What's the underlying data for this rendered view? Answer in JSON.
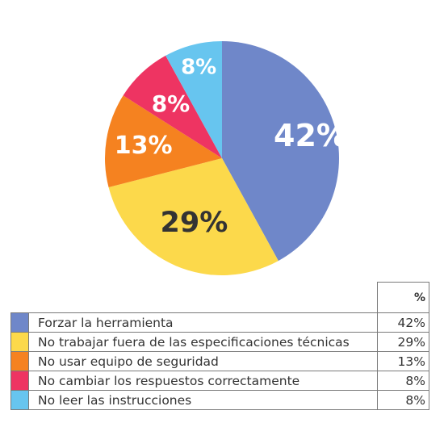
{
  "chart_data": {
    "type": "pie",
    "categories": [
      "Forzar la herramienta",
      "No trabajar fuera de las especificaciones técnicas",
      "No usar equipo de seguridad",
      "No cambiar los respuestos correctamente",
      "No leer las instrucciones"
    ],
    "values": [
      42,
      29,
      13,
      8,
      8
    ],
    "data_labels": [
      "42%",
      "29%",
      "13%",
      "8%",
      "8%"
    ],
    "colors": [
      "#6f87c9",
      "#fcd94b",
      "#f58220",
      "#ee3462",
      "#67c5ef"
    ],
    "label_colors": [
      "#ffffff",
      "#333333",
      "#ffffff",
      "#ffffff",
      "#ffffff"
    ],
    "start_angle": "12 o'clock",
    "direction": "clockwise",
    "legend": "bottom-table",
    "table_header": "%"
  }
}
